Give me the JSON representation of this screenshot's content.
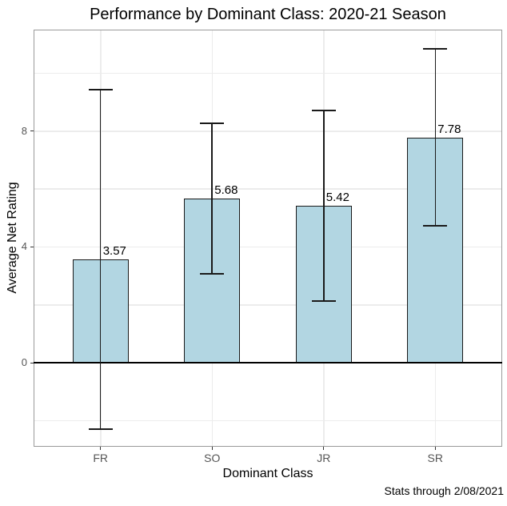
{
  "page": {
    "title": "Performance by Dominant Class: 2020-21 Season",
    "caption": "Stats through 2/08/2021"
  },
  "chart_data": {
    "type": "bar",
    "title": "Performance by Dominant Class: 2020-21 Season",
    "xlabel": "Dominant Class",
    "ylabel": "Average Net Rating",
    "caption": "Stats through 2/08/2021",
    "categories": [
      "FR",
      "SO",
      "JR",
      "SR"
    ],
    "values": [
      3.57,
      5.68,
      5.42,
      7.78
    ],
    "bar_labels": [
      "3.57",
      "5.68",
      "5.42",
      "7.78"
    ],
    "error_low": [
      -2.29,
      3.08,
      2.14,
      4.73
    ],
    "error_high": [
      9.43,
      8.28,
      8.7,
      10.83
    ],
    "ylim": [
      -2.9,
      11.5
    ],
    "y_ticks": [
      0,
      4,
      8
    ],
    "y_tick_labels": [
      "0",
      "4",
      "8"
    ],
    "gridlines_y": [
      -2,
      0,
      2,
      4,
      6,
      8,
      10
    ],
    "grid": true,
    "legend": "none",
    "colors": {
      "bar_fill": "#b2d6e2",
      "bar_border": "#1a1a1a",
      "error_bar": "#1a1a1a",
      "zero_line": "#000000",
      "grid": "#ececec",
      "panel_border": "#9a9a9a",
      "tick_label": "#555555",
      "text": "#000000"
    }
  }
}
